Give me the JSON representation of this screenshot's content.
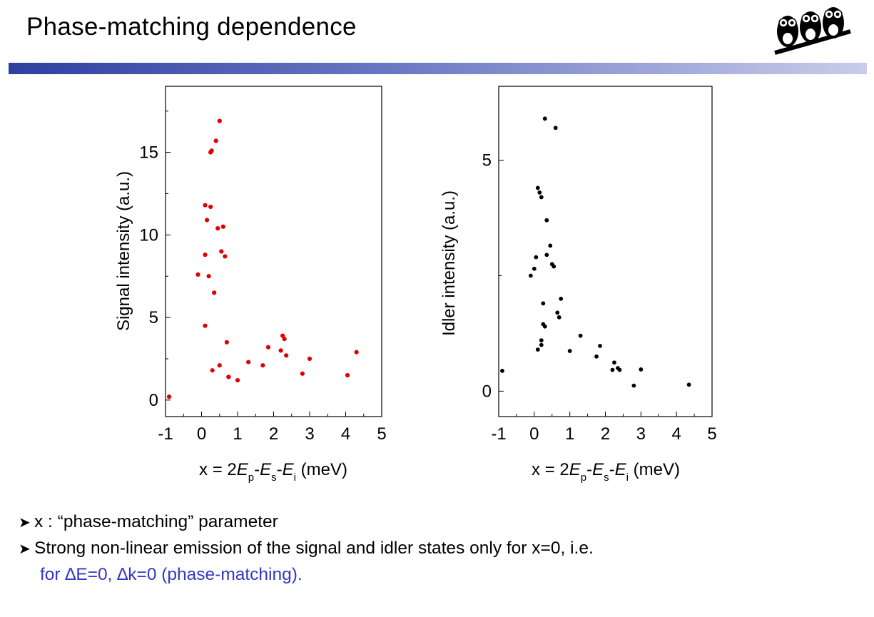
{
  "title": "Phase-matching dependence",
  "colors": {
    "accent_bar_start": "#2f3fa0",
    "accent_bar_end": "#c9cdea",
    "signal_points": "#e00000",
    "idler_points": "#000000",
    "note_text": "#3535c8"
  },
  "icons": [
    "owls-logo",
    "bullet-arrow-icon"
  ],
  "chart_data": [
    {
      "type": "scatter",
      "ylabel": "Signal intensity (a.u.)",
      "xlabel": "x = 2Ep-Es-Ei (meV)",
      "xlabel_parts": {
        "pre": "x = 2",
        "ep": "E",
        "ep_sub": "p",
        "dash1": "-",
        "es": "E",
        "es_sub": "s",
        "dash2": "-",
        "ei": "E",
        "ei_sub": "i",
        "unit": " (meV)"
      },
      "xlim": [
        -1,
        5
      ],
      "ylim": [
        -1,
        19
      ],
      "xticks": [
        -1,
        0,
        1,
        2,
        3,
        4,
        5
      ],
      "yticks": [
        0,
        5,
        10,
        15
      ],
      "x": [
        -0.9,
        -0.1,
        0.1,
        0.1,
        0.1,
        0.15,
        0.2,
        0.25,
        0.25,
        0.28,
        0.3,
        0.35,
        0.4,
        0.45,
        0.5,
        0.5,
        0.55,
        0.6,
        0.65,
        0.7,
        0.75,
        0.75,
        1.0,
        1.3,
        1.7,
        1.85,
        2.2,
        2.25,
        2.3,
        2.35,
        2.8,
        3.0,
        4.05,
        4.3
      ],
      "y": [
        0.2,
        7.6,
        11.8,
        8.8,
        4.5,
        10.9,
        7.5,
        11.7,
        15.0,
        15.1,
        1.8,
        6.5,
        15.7,
        10.4,
        16.9,
        2.1,
        9.0,
        10.5,
        8.7,
        3.5,
        1.4,
        1.4,
        1.2,
        2.3,
        2.1,
        3.2,
        3.0,
        3.9,
        3.7,
        2.7,
        1.6,
        2.5,
        1.5,
        2.9
      ]
    },
    {
      "type": "scatter",
      "ylabel": "Idler intensity (a.u.)",
      "xlabel": "x = 2Ep-Es-Ei (meV)",
      "xlabel_parts": {
        "pre": "x = 2",
        "ep": "E",
        "ep_sub": "p",
        "dash1": "-",
        "es": "E",
        "es_sub": "s",
        "dash2": "-",
        "ei": "E",
        "ei_sub": "i",
        "unit": " (meV)"
      },
      "xlim": [
        -1,
        5
      ],
      "ylim": [
        -0.55,
        6.6
      ],
      "xticks": [
        -1,
        0,
        1,
        2,
        3,
        4,
        5
      ],
      "yticks": [
        0,
        5
      ],
      "x": [
        -0.9,
        -0.1,
        0.0,
        0.05,
        0.1,
        0.1,
        0.15,
        0.2,
        0.2,
        0.2,
        0.25,
        0.25,
        0.3,
        0.3,
        0.35,
        0.35,
        0.45,
        0.5,
        0.55,
        0.6,
        0.65,
        0.7,
        0.75,
        1.0,
        1.3,
        1.75,
        1.85,
        2.2,
        2.25,
        2.35,
        2.4,
        2.8,
        3.0,
        4.35
      ],
      "y": [
        0.44,
        2.5,
        2.65,
        2.9,
        0.9,
        4.4,
        4.3,
        1.0,
        1.1,
        4.2,
        1.9,
        1.45,
        5.9,
        1.4,
        2.95,
        3.7,
        3.15,
        2.75,
        2.7,
        5.7,
        1.7,
        1.6,
        2.0,
        0.87,
        1.2,
        0.75,
        0.98,
        0.46,
        0.62,
        0.5,
        0.46,
        0.12,
        0.47,
        0.14
      ]
    }
  ],
  "bullets": [
    {
      "text": "x : “phase-matching” parameter"
    },
    {
      "text": "Strong non-linear emission of the signal and idler states only for  x=0, i.e."
    }
  ],
  "note": "for ∆E=0, ∆k=0 (phase-matching)."
}
